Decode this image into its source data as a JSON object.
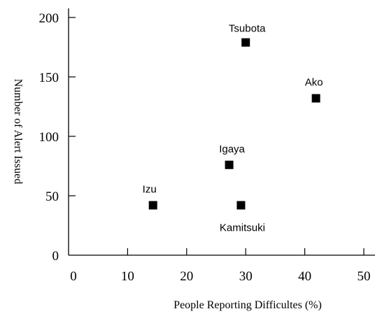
{
  "chart_data": {
    "type": "scatter",
    "title": "",
    "xlabel": "People Reporting Difficultes (%)",
    "ylabel": "Number of Alert Issued",
    "xlim": [
      0,
      50
    ],
    "ylim": [
      0,
      200
    ],
    "xticks": [
      0,
      10,
      20,
      30,
      40,
      50
    ],
    "yticks": [
      0,
      50,
      100,
      150,
      200
    ],
    "grid": false,
    "legend": "none",
    "marker_color": "#000000",
    "points": [
      {
        "label": "Izu",
        "x": 14.3,
        "y": 42
      },
      {
        "label": "Kamitsuki",
        "x": 29.2,
        "y": 42
      },
      {
        "label": "Igaya",
        "x": 27.2,
        "y": 76
      },
      {
        "label": "Tsubota",
        "x": 30.0,
        "y": 179
      },
      {
        "label": "Ako",
        "x": 41.9,
        "y": 132
      }
    ]
  }
}
